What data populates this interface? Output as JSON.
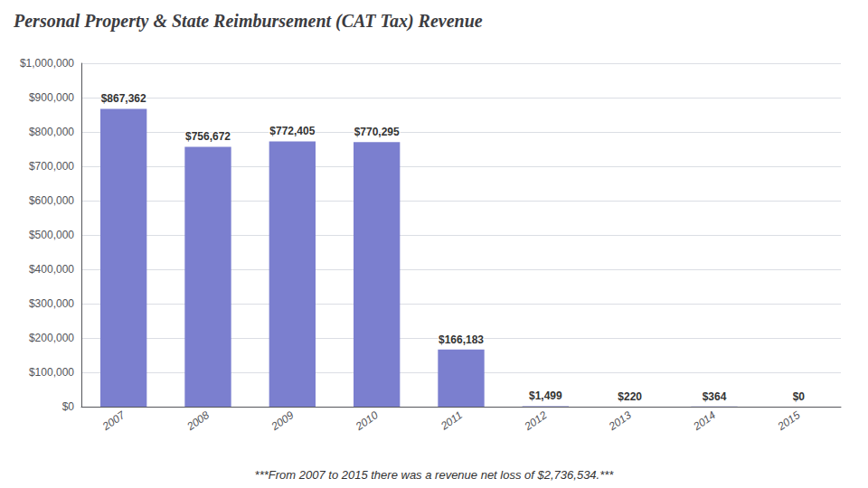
{
  "chart_data": {
    "type": "bar",
    "title": "Personal Property & State Reimbursement (CAT Tax) Revenue",
    "categories": [
      "2007",
      "2008",
      "2009",
      "2010",
      "2011",
      "2012",
      "2013",
      "2014",
      "2015"
    ],
    "values": [
      867362,
      756672,
      772405,
      770295,
      166183,
      1499,
      220,
      364,
      0
    ],
    "value_labels": [
      "$867,362",
      "$756,672",
      "$772,405",
      "$770,295",
      "$166,183",
      "$1,499",
      "$220",
      "$364",
      "$0"
    ],
    "data_labels": true,
    "color": "#7b7fcf",
    "ylim": [
      0,
      1000000
    ],
    "yticks": [
      {
        "value": 0,
        "label": "$0"
      },
      {
        "value": 100000,
        "label": "$100,000"
      },
      {
        "value": 200000,
        "label": "$200,000"
      },
      {
        "value": 300000,
        "label": "$300,000"
      },
      {
        "value": 400000,
        "label": "$400,000"
      },
      {
        "value": 500000,
        "label": "$500,000"
      },
      {
        "value": 600000,
        "label": "$600,000"
      },
      {
        "value": 700000,
        "label": "$700,000"
      },
      {
        "value": 800000,
        "label": "$800,000"
      },
      {
        "value": 900000,
        "label": "$900,000"
      },
      {
        "value": 1000000,
        "label": "$1,000,000"
      }
    ],
    "grid": true,
    "annotations": [
      "***From 2007 to 2015 there was a revenue net loss of $2,736,534.***"
    ]
  }
}
